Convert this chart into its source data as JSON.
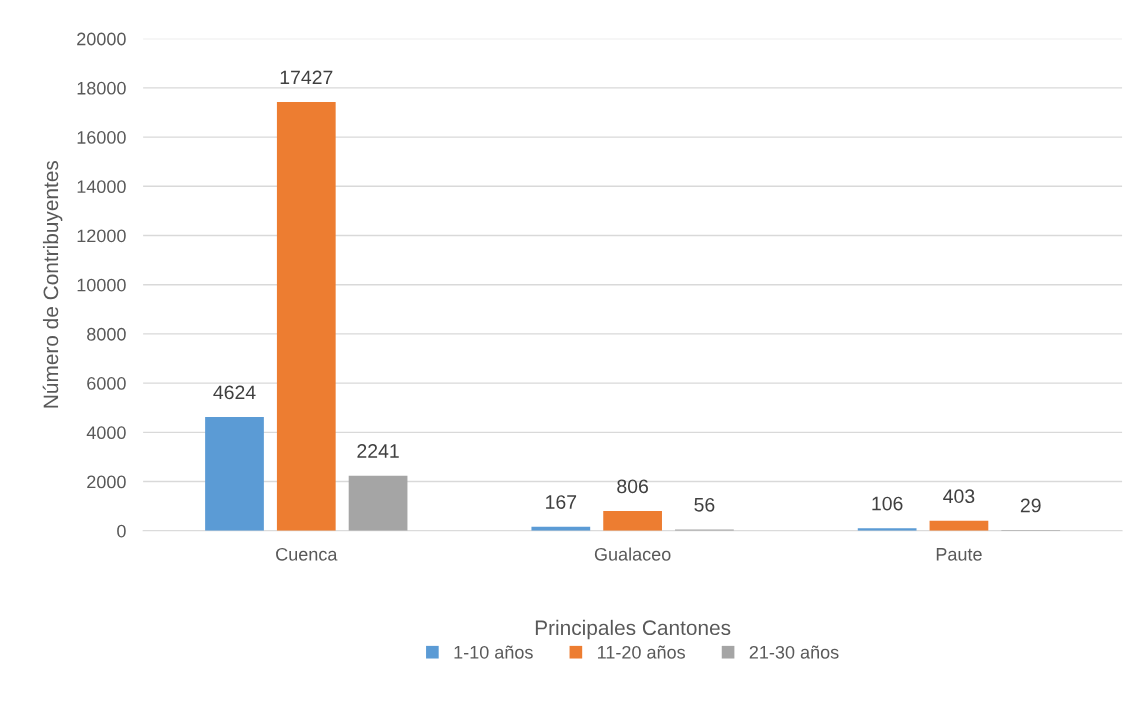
{
  "chart_data": {
    "type": "bar",
    "xlabel": "Principales Cantones",
    "ylabel": "Número de Contribuyentes",
    "categories": [
      "Cuenca",
      "Gualaceo",
      "Paute"
    ],
    "series": [
      {
        "name": "1-10 años",
        "color": "#5b9bd5",
        "values": [
          4624,
          167,
          106
        ]
      },
      {
        "name": "11-20 años",
        "color": "#ed7d31",
        "values": [
          17427,
          806,
          403
        ]
      },
      {
        "name": "21-30 años",
        "color": "#a5a5a5",
        "values": [
          2241,
          56,
          29
        ]
      }
    ],
    "ylim": [
      0,
      20000
    ],
    "yticks": [
      0,
      2000,
      4000,
      6000,
      8000,
      10000,
      12000,
      14000,
      16000,
      18000,
      20000
    ],
    "grid": "y",
    "legend": "bottom",
    "data_labels": true
  }
}
